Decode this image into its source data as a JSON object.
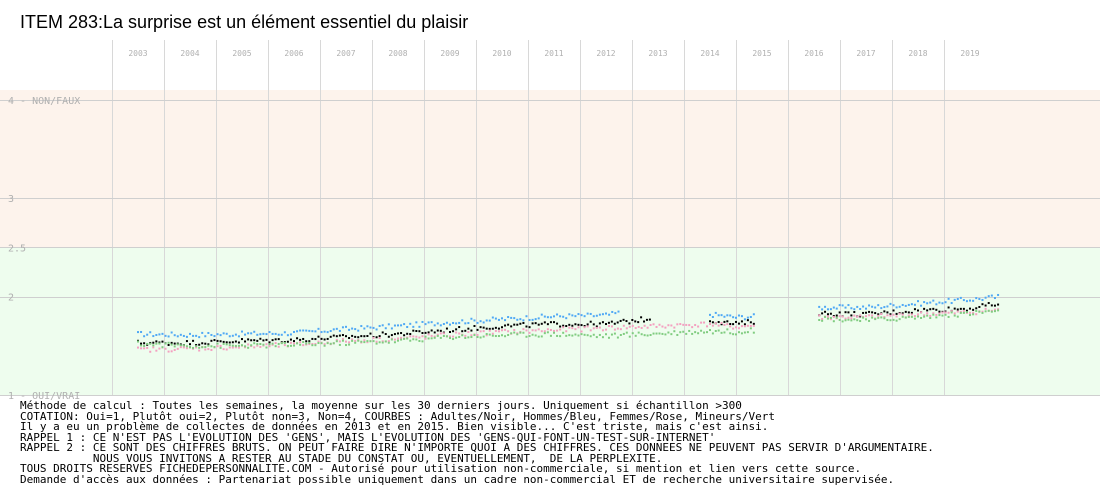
{
  "title": "ITEM 283:La surprise est un élément essentiel du plaisir",
  "chart_data": {
    "type": "scatter",
    "years": [
      "2003",
      "2004",
      "2005",
      "2006",
      "2007",
      "2008",
      "2009",
      "2010",
      "2011",
      "2012",
      "2013",
      "2014",
      "2015",
      "2016",
      "2017",
      "2018",
      "2019"
    ],
    "y_ticks": [
      {
        "value": 4,
        "label": "4 - NON/FAUX"
      },
      {
        "value": 3,
        "label": "3"
      },
      {
        "value": 2.5,
        "label": "2.5"
      },
      {
        "value": 2,
        "label": "2"
      },
      {
        "value": 1,
        "label": "1 - OUI/VRAI"
      }
    ],
    "ylim": [
      1,
      4.1
    ],
    "zones": [
      {
        "from": 2.5,
        "to": 4.1,
        "color": "#fdf3ec"
      },
      {
        "from": 1,
        "to": 2.5,
        "color": "#eefdee"
      }
    ],
    "series": [
      {
        "key": "hommes",
        "color": "#4fa8f5",
        "points": [
          {
            "x": 2003.0,
            "y": 1.62
          },
          {
            "x": 2004.0,
            "y": 1.61
          },
          {
            "x": 2005.0,
            "y": 1.62
          },
          {
            "x": 2006.0,
            "y": 1.63
          },
          {
            "x": 2007.0,
            "y": 1.67
          },
          {
            "x": 2008.0,
            "y": 1.7
          },
          {
            "x": 2009.0,
            "y": 1.74
          },
          {
            "x": 2010.0,
            "y": 1.77
          },
          {
            "x": 2011.0,
            "y": 1.8
          },
          {
            "x": 2012.0,
            "y": 1.81
          },
          {
            "x": 2012.3,
            "y": 1.84
          },
          {
            "x": 2014.0,
            "y": 1.82
          },
          {
            "x": 2014.5,
            "y": 1.79
          },
          {
            "x": 2014.9,
            "y": 1.8
          },
          {
            "x": 2016.1,
            "y": 1.89
          },
          {
            "x": 2017.0,
            "y": 1.89
          },
          {
            "x": 2018.0,
            "y": 1.93
          },
          {
            "x": 2019.0,
            "y": 1.97
          },
          {
            "x": 2019.6,
            "y": 2.0
          }
        ]
      },
      {
        "key": "adultes",
        "color": "#000000",
        "points": [
          {
            "x": 2003.0,
            "y": 1.53
          },
          {
            "x": 2004.0,
            "y": 1.53
          },
          {
            "x": 2005.0,
            "y": 1.55
          },
          {
            "x": 2006.0,
            "y": 1.56
          },
          {
            "x": 2007.0,
            "y": 1.59
          },
          {
            "x": 2008.0,
            "y": 1.62
          },
          {
            "x": 2009.0,
            "y": 1.66
          },
          {
            "x": 2010.0,
            "y": 1.7
          },
          {
            "x": 2011.0,
            "y": 1.72
          },
          {
            "x": 2012.0,
            "y": 1.72
          },
          {
            "x": 2012.9,
            "y": 1.78
          },
          {
            "x": 2014.0,
            "y": 1.76
          },
          {
            "x": 2014.5,
            "y": 1.72
          },
          {
            "x": 2014.9,
            "y": 1.75
          },
          {
            "x": 2016.1,
            "y": 1.83
          },
          {
            "x": 2017.0,
            "y": 1.82
          },
          {
            "x": 2018.0,
            "y": 1.86
          },
          {
            "x": 2019.0,
            "y": 1.88
          },
          {
            "x": 2019.6,
            "y": 1.93
          }
        ]
      },
      {
        "key": "femmes",
        "color": "#f4a0c0",
        "points": [
          {
            "x": 2003.0,
            "y": 1.46
          },
          {
            "x": 2004.0,
            "y": 1.47
          },
          {
            "x": 2005.0,
            "y": 1.49
          },
          {
            "x": 2006.0,
            "y": 1.51
          },
          {
            "x": 2007.0,
            "y": 1.55
          },
          {
            "x": 2008.0,
            "y": 1.57
          },
          {
            "x": 2009.0,
            "y": 1.61
          },
          {
            "x": 2010.0,
            "y": 1.64
          },
          {
            "x": 2011.0,
            "y": 1.66
          },
          {
            "x": 2012.0,
            "y": 1.68
          },
          {
            "x": 2014.0,
            "y": 1.72
          },
          {
            "x": 2014.5,
            "y": 1.69
          },
          {
            "x": 2014.9,
            "y": 1.71
          },
          {
            "x": 2016.1,
            "y": 1.79
          },
          {
            "x": 2017.0,
            "y": 1.79
          },
          {
            "x": 2018.0,
            "y": 1.82
          },
          {
            "x": 2019.0,
            "y": 1.84
          },
          {
            "x": 2019.6,
            "y": 1.87
          }
        ]
      },
      {
        "key": "mineurs",
        "color": "#80cc80",
        "points": [
          {
            "x": 2003.0,
            "y": 1.52
          },
          {
            "x": 2004.0,
            "y": 1.5
          },
          {
            "x": 2005.0,
            "y": 1.5
          },
          {
            "x": 2006.0,
            "y": 1.51
          },
          {
            "x": 2007.0,
            "y": 1.53
          },
          {
            "x": 2008.0,
            "y": 1.55
          },
          {
            "x": 2009.0,
            "y": 1.59
          },
          {
            "x": 2010.0,
            "y": 1.61
          },
          {
            "x": 2011.0,
            "y": 1.62
          },
          {
            "x": 2012.0,
            "y": 1.6
          },
          {
            "x": 2014.0,
            "y": 1.65
          },
          {
            "x": 2014.5,
            "y": 1.64
          },
          {
            "x": 2014.9,
            "y": 1.66
          },
          {
            "x": 2016.1,
            "y": 1.78
          },
          {
            "x": 2017.0,
            "y": 1.76
          },
          {
            "x": 2018.0,
            "y": 1.79
          },
          {
            "x": 2019.0,
            "y": 1.83
          },
          {
            "x": 2019.6,
            "y": 1.86
          }
        ]
      }
    ]
  },
  "notes": [
    "Méthode de calcul : Toutes les semaines, la moyenne sur les 30 derniers jours. Uniquement si échantillon >300",
    "COTATION: Oui=1, Plutôt oui=2, Plutôt non=3, Non=4, COURBES : Adultes/Noir, Hommes/Bleu, Femmes/Rose, Mineurs/Vert",
    "Il y a eu un problème de collectes de données en 2013 et en 2015. Bien visible... C'est triste, mais c'est ainsi.",
    "RAPPEL 1 : CE N'EST PAS L'EVOLUTION DES 'GENS', MAIS L'EVOLUTION DES 'GENS-QUI-FONT-UN-TEST-SUR-INTERNET'",
    "RAPPEL 2 : CE SONT DES CHIFFRES BRUTS. ON PEUT FAIRE DIRE N'IMPORTE QUOI A DES CHIFFRES. CES DONNEES NE PEUVENT PAS SERVIR D'ARGUMENTAIRE.",
    "           NOUS VOUS INVITONS A RESTER AU STADE DU CONSTAT OU, EVENTUELLEMENT,  DE LA PERPLEXITE.",
    "TOUS DROITS RESERVES FICHEDEPERSONNALITE.COM - Autorisé pour utilisation non-commerciale, si mention et lien vers cette source.",
    "Demande d'accès aux données : Partenariat possible uniquement dans un cadre non-commercial ET de recherche universitaire supervisée."
  ]
}
